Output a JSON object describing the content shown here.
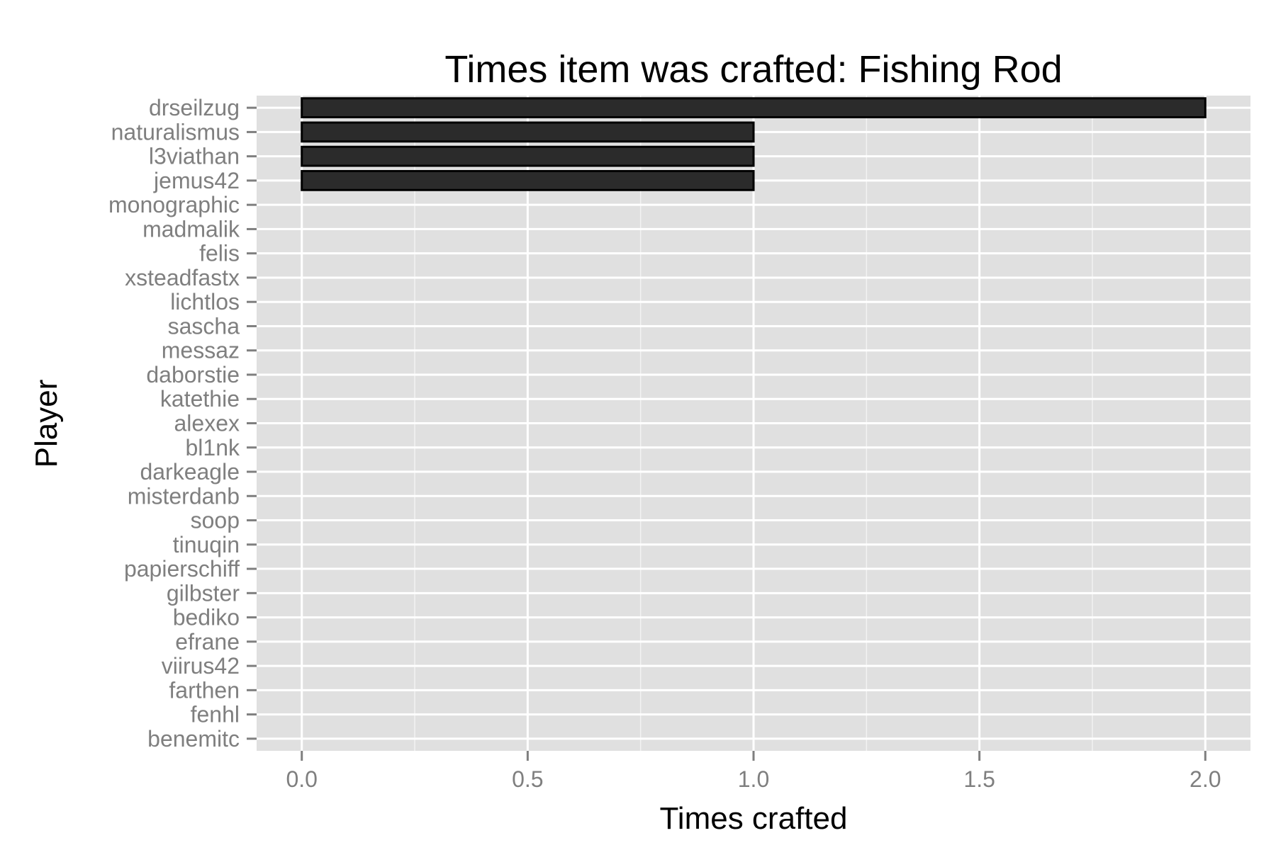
{
  "chart_data": {
    "type": "bar",
    "orientation": "horizontal",
    "title": "Times item was crafted: Fishing Rod",
    "xlabel": "Times crafted",
    "ylabel": "Player",
    "categories": [
      "drseilzug",
      "naturalismus",
      "l3viathan",
      "jemus42",
      "monographic",
      "madmalik",
      "felis",
      "xsteadfastx",
      "lichtlos",
      "sascha",
      "messaz",
      "daborstie",
      "katethie",
      "alexex",
      "bl1nk",
      "darkeagle",
      "misterdanb",
      "soop",
      "tinuqin",
      "papierschiff",
      "gilbster",
      "bediko",
      "efrane",
      "viirus42",
      "farthen",
      "fenhl",
      "benemitc"
    ],
    "values": [
      2,
      1,
      1,
      1,
      0,
      0,
      0,
      0,
      0,
      0,
      0,
      0,
      0,
      0,
      0,
      0,
      0,
      0,
      0,
      0,
      0,
      0,
      0,
      0,
      0,
      0,
      0
    ],
    "xticks": [
      "0.0",
      "0.5",
      "1.0",
      "1.5",
      "2.0"
    ],
    "xlim": [
      -0.1,
      2.1
    ],
    "grid": true,
    "legend": "none",
    "colors": {
      "panel": "#e0e0e0",
      "bar_fill": "#2b2b2b",
      "bar_outline": "#000000",
      "grid": "#ffffff",
      "tick_text": "#7f7f7f"
    }
  }
}
